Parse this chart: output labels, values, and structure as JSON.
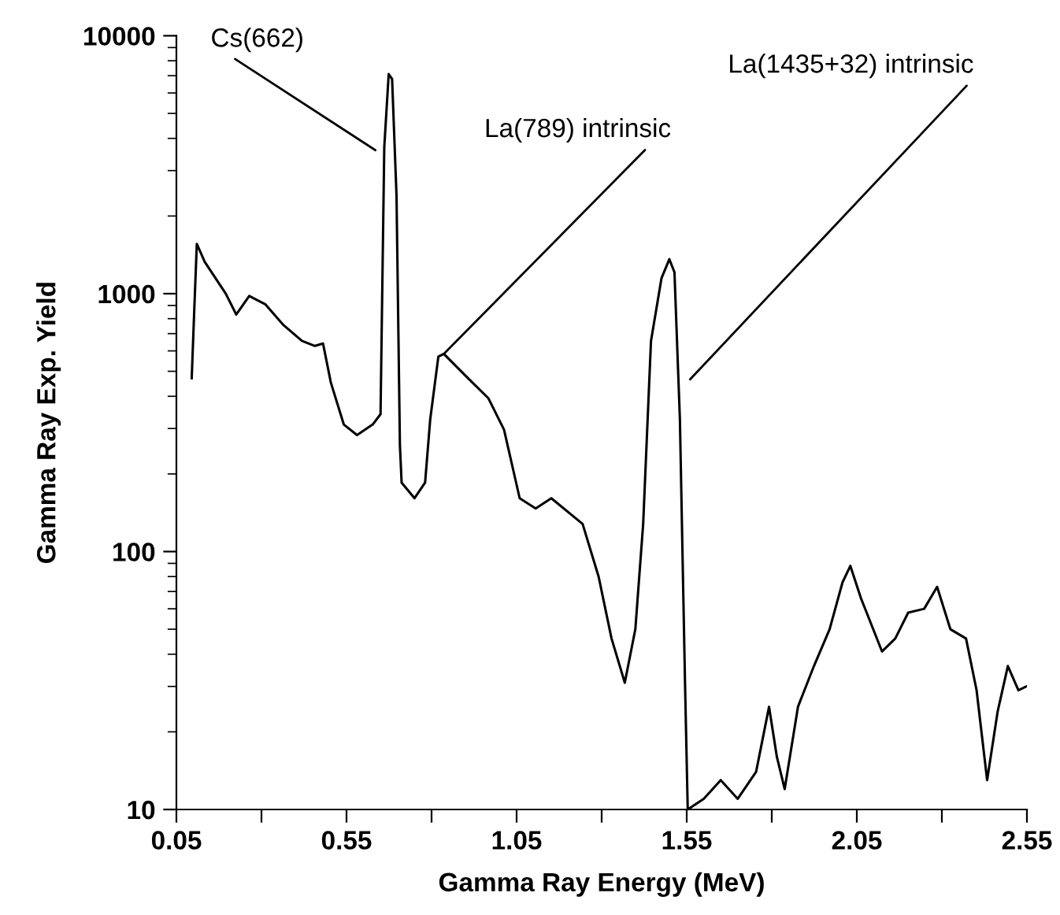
{
  "chart_data": {
    "type": "line",
    "xlabel": "Gamma Ray Energy (MeV)",
    "ylabel": "Gamma Ray Exp. Yield",
    "log": "y",
    "xlim": [
      0.05,
      2.55
    ],
    "ylim": [
      10,
      10000
    ],
    "xticks": [
      0.05,
      {
        "value": 0.3,
        "label": null
      },
      0.55,
      {
        "value": 0.8,
        "label": null
      },
      1.05,
      {
        "value": 1.3,
        "label": null
      },
      1.55,
      {
        "value": 1.8,
        "label": null
      },
      2.05,
      {
        "value": 2.3,
        "label": null
      },
      2.55
    ],
    "yticks": [
      10,
      100,
      1000,
      10000
    ],
    "grid": false,
    "legend": false,
    "marker": "none",
    "line_style": "solid",
    "series": [
      {
        "color": "#000000",
        "x": [
          0.095,
          0.102,
          0.11,
          0.133,
          0.195,
          0.226,
          0.264,
          0.311,
          0.365,
          0.419,
          0.457,
          0.481,
          0.504,
          0.542,
          0.581,
          0.627,
          0.65,
          0.661,
          0.674,
          0.684,
          0.697,
          0.707,
          0.712,
          0.75,
          0.781,
          0.796,
          0.82,
          0.836,
          0.905,
          0.967,
          1.013,
          1.059,
          1.106,
          1.152,
          1.244,
          1.291,
          1.329,
          1.368,
          1.399,
          1.422,
          1.445,
          1.476,
          1.499,
          1.514,
          1.53,
          1.545,
          1.553,
          1.6,
          1.65,
          1.7,
          1.754,
          1.792,
          1.815,
          1.838,
          1.877,
          1.924,
          1.97,
          2.008,
          2.031,
          2.062,
          2.124,
          2.163,
          2.201,
          2.248,
          2.286,
          2.325,
          2.371,
          2.402,
          2.433,
          2.464,
          2.494,
          2.525,
          2.548
        ],
        "values": [
          470,
          830,
          1560,
          1330,
          1000,
          830,
          980,
          910,
          755,
          656,
          627,
          641,
          452,
          311,
          283,
          311,
          341,
          3700,
          7100,
          6800,
          2400,
          258,
          185,
          161,
          185,
          325,
          570,
          584,
          473,
          393,
          297,
          161,
          147,
          161,
          128,
          80,
          46,
          31,
          50,
          128,
          656,
          1150,
          1360,
          1210,
          325,
          31,
          10,
          11,
          13,
          11,
          14,
          25,
          16,
          12,
          25,
          36,
          50,
          76,
          88,
          66,
          41,
          46,
          58,
          60,
          73,
          50,
          46,
          29,
          13,
          24,
          36,
          29,
          30
        ]
      }
    ],
    "annotations": [
      {
        "text": "Cs(662)",
        "x": 0.635,
        "y": 3600
      },
      {
        "text": "La(789) intrinsic",
        "x": 0.836,
        "y": 584
      },
      "La(1435+32) intrinsic"
    ]
  }
}
